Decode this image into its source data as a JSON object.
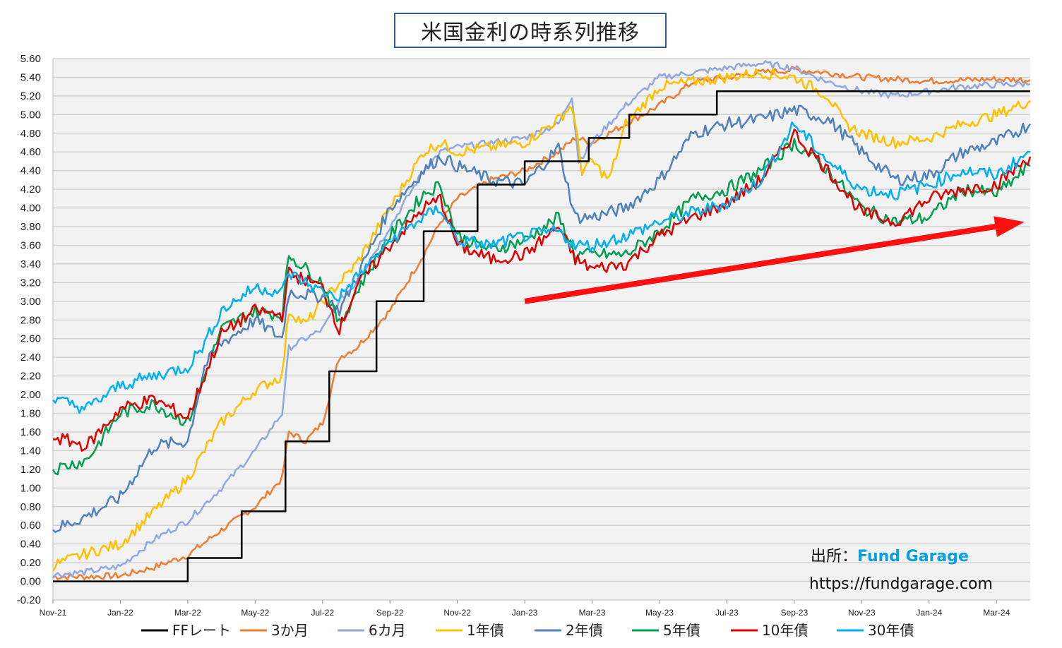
{
  "title": "米国金利の時系列推移",
  "source": {
    "label": "出所：",
    "brand": "Fund Garage",
    "url": "https://fundgarage.com"
  },
  "chart_data": {
    "type": "line",
    "title": "米国金利の時系列推移",
    "ylim": [
      -0.2,
      5.6
    ],
    "y_ticks": [
      "5.60",
      "5.40",
      "5.20",
      "5.00",
      "4.80",
      "4.60",
      "4.40",
      "4.20",
      "4.00",
      "3.80",
      "3.60",
      "3.40",
      "3.20",
      "3.00",
      "2.80",
      "2.60",
      "2.40",
      "2.20",
      "2.00",
      "1.80",
      "1.60",
      "1.40",
      "1.20",
      "1.00",
      "0.80",
      "0.60",
      "0.40",
      "0.20",
      "0.00",
      "-0.20"
    ],
    "x_ticks": [
      "Nov-21",
      "Jan-22",
      "Mar-22",
      "May-22",
      "Jul-22",
      "Sep-22",
      "Nov-22",
      "Jan-23",
      "Mar-23",
      "May-23",
      "Jul-23",
      "Sep-23",
      "Nov-23",
      "Jan-24",
      "Mar-24"
    ],
    "x_range": [
      "2021-11",
      "2024-04"
    ],
    "grid": true,
    "legend_position": "bottom",
    "annotation": {
      "type": "arrow",
      "color": "#ff1010",
      "from": [
        "2023-01",
        3.0
      ],
      "to": [
        "2024-04",
        3.85
      ]
    },
    "series": [
      {
        "name": "FFレート",
        "color": "#000000",
        "step": true,
        "points": [
          [
            0,
            0.0
          ],
          [
            4.0,
            0.0
          ],
          [
            4.0,
            0.25
          ],
          [
            5.6,
            0.25
          ],
          [
            5.6,
            0.75
          ],
          [
            6.9,
            0.75
          ],
          [
            6.9,
            1.5
          ],
          [
            8.2,
            1.5
          ],
          [
            8.2,
            2.25
          ],
          [
            9.6,
            2.25
          ],
          [
            9.6,
            3.0
          ],
          [
            11.0,
            3.0
          ],
          [
            11.0,
            3.75
          ],
          [
            12.6,
            3.75
          ],
          [
            12.6,
            4.25
          ],
          [
            14.0,
            4.25
          ],
          [
            14.0,
            4.5
          ],
          [
            15.9,
            4.5
          ],
          [
            15.9,
            4.75
          ],
          [
            17.1,
            4.75
          ],
          [
            17.1,
            5.0
          ],
          [
            19.7,
            5.0
          ],
          [
            19.7,
            5.25
          ],
          [
            29.0,
            5.25
          ]
        ]
      },
      {
        "name": "3か月",
        "color": "#ed7d31",
        "points": [
          [
            0,
            0.05
          ],
          [
            1,
            0.05
          ],
          [
            2,
            0.06
          ],
          [
            3,
            0.15
          ],
          [
            4,
            0.28
          ],
          [
            5,
            0.55
          ],
          [
            6,
            0.8
          ],
          [
            6.8,
            1.1
          ],
          [
            7,
            1.6
          ],
          [
            7.5,
            1.5
          ],
          [
            8,
            1.7
          ],
          [
            8.5,
            2.4
          ],
          [
            9,
            2.5
          ],
          [
            10,
            2.9
          ],
          [
            11,
            3.5
          ],
          [
            11.5,
            3.85
          ],
          [
            12,
            4.1
          ],
          [
            13,
            4.3
          ],
          [
            14,
            4.4
          ],
          [
            15,
            4.6
          ],
          [
            15.5,
            4.75
          ],
          [
            16,
            4.7
          ],
          [
            17,
            4.9
          ],
          [
            18,
            5.1
          ],
          [
            19,
            5.35
          ],
          [
            20,
            5.4
          ],
          [
            21,
            5.45
          ],
          [
            22,
            5.48
          ],
          [
            23,
            5.45
          ],
          [
            24,
            5.4
          ],
          [
            25,
            5.38
          ],
          [
            26,
            5.36
          ],
          [
            27,
            5.37
          ],
          [
            28,
            5.38
          ],
          [
            29,
            5.37
          ]
        ]
      },
      {
        "name": "6カ月",
        "color": "#8fa9dc",
        "points": [
          [
            0,
            0.07
          ],
          [
            1,
            0.1
          ],
          [
            2,
            0.16
          ],
          [
            3,
            0.45
          ],
          [
            4,
            0.65
          ],
          [
            5,
            1.0
          ],
          [
            6,
            1.4
          ],
          [
            6.8,
            1.8
          ],
          [
            7,
            2.5
          ],
          [
            8,
            2.7
          ],
          [
            8.5,
            3.0
          ],
          [
            9,
            3.2
          ],
          [
            10,
            3.8
          ],
          [
            11,
            4.4
          ],
          [
            11.5,
            4.6
          ],
          [
            12,
            4.65
          ],
          [
            13,
            4.7
          ],
          [
            14,
            4.75
          ],
          [
            15,
            4.9
          ],
          [
            15.4,
            5.2
          ],
          [
            15.6,
            4.5
          ],
          [
            16,
            4.7
          ],
          [
            17,
            5.1
          ],
          [
            18,
            5.4
          ],
          [
            19,
            5.45
          ],
          [
            20,
            5.5
          ],
          [
            21,
            5.55
          ],
          [
            22,
            5.5
          ],
          [
            23,
            5.35
          ],
          [
            24,
            5.25
          ],
          [
            25,
            5.2
          ],
          [
            26,
            5.25
          ],
          [
            27,
            5.3
          ],
          [
            28,
            5.32
          ],
          [
            29,
            5.33
          ]
        ]
      },
      {
        "name": "1年債",
        "color": "#ffc000",
        "points": [
          [
            0,
            0.17
          ],
          [
            1,
            0.3
          ],
          [
            2,
            0.4
          ],
          [
            3,
            0.75
          ],
          [
            4,
            1.1
          ],
          [
            5,
            1.7
          ],
          [
            6,
            2.05
          ],
          [
            6.8,
            2.2
          ],
          [
            7,
            2.9
          ],
          [
            7.5,
            2.75
          ],
          [
            8,
            3.0
          ],
          [
            9,
            3.4
          ],
          [
            10,
            4.0
          ],
          [
            11,
            4.6
          ],
          [
            11.5,
            4.7
          ],
          [
            12,
            4.6
          ],
          [
            13,
            4.65
          ],
          [
            14,
            4.7
          ],
          [
            15,
            4.95
          ],
          [
            15.4,
            5.1
          ],
          [
            15.7,
            4.4
          ],
          [
            16,
            4.5
          ],
          [
            16.5,
            4.3
          ],
          [
            17,
            4.9
          ],
          [
            18,
            5.3
          ],
          [
            19,
            5.35
          ],
          [
            20,
            5.4
          ],
          [
            21,
            5.45
          ],
          [
            22,
            5.4
          ],
          [
            23,
            5.2
          ],
          [
            23.5,
            4.9
          ],
          [
            24,
            4.8
          ],
          [
            25,
            4.7
          ],
          [
            26,
            4.75
          ],
          [
            27,
            4.9
          ],
          [
            28,
            5.0
          ],
          [
            29,
            5.15
          ]
        ]
      },
      {
        "name": "2年債",
        "color": "#4f81bd",
        "points": [
          [
            0,
            0.55
          ],
          [
            1,
            0.7
          ],
          [
            2,
            0.9
          ],
          [
            3,
            1.45
          ],
          [
            4,
            1.5
          ],
          [
            4.5,
            2.3
          ],
          [
            5,
            2.55
          ],
          [
            6,
            2.8
          ],
          [
            6.8,
            2.6
          ],
          [
            7,
            3.1
          ],
          [
            8,
            3.05
          ],
          [
            8.5,
            2.9
          ],
          [
            9,
            3.25
          ],
          [
            10,
            4.0
          ],
          [
            11,
            4.4
          ],
          [
            11.5,
            4.55
          ],
          [
            12,
            4.45
          ],
          [
            13,
            4.3
          ],
          [
            14,
            4.25
          ],
          [
            15,
            4.65
          ],
          [
            15.5,
            3.9
          ],
          [
            16,
            3.9
          ],
          [
            17,
            4.0
          ],
          [
            18,
            4.3
          ],
          [
            19,
            4.8
          ],
          [
            20,
            4.9
          ],
          [
            21,
            4.95
          ],
          [
            22,
            5.05
          ],
          [
            23,
            4.95
          ],
          [
            24,
            4.6
          ],
          [
            25,
            4.3
          ],
          [
            26,
            4.35
          ],
          [
            27,
            4.6
          ],
          [
            28,
            4.7
          ],
          [
            29,
            4.9
          ]
        ]
      },
      {
        "name": "5年債",
        "color": "#00a050",
        "points": [
          [
            0,
            1.2
          ],
          [
            1,
            1.3
          ],
          [
            2,
            1.8
          ],
          [
            3,
            1.9
          ],
          [
            4,
            1.7
          ],
          [
            4.5,
            2.2
          ],
          [
            5,
            2.7
          ],
          [
            6,
            2.9
          ],
          [
            6.8,
            2.85
          ],
          [
            7,
            3.5
          ],
          [
            8,
            3.2
          ],
          [
            8.5,
            2.75
          ],
          [
            9,
            3.1
          ],
          [
            10,
            3.7
          ],
          [
            11,
            4.15
          ],
          [
            11.5,
            4.25
          ],
          [
            12,
            3.7
          ],
          [
            13,
            3.55
          ],
          [
            14,
            3.65
          ],
          [
            15,
            3.9
          ],
          [
            15.5,
            3.5
          ],
          [
            16,
            3.5
          ],
          [
            17,
            3.5
          ],
          [
            18,
            3.75
          ],
          [
            19,
            4.1
          ],
          [
            20,
            4.2
          ],
          [
            21,
            4.4
          ],
          [
            22,
            4.7
          ],
          [
            23,
            4.4
          ],
          [
            24,
            4.0
          ],
          [
            25,
            3.85
          ],
          [
            26,
            3.9
          ],
          [
            27,
            4.2
          ],
          [
            28,
            4.15
          ],
          [
            29,
            4.45
          ]
        ]
      },
      {
        "name": "10年債",
        "color": "#e00000",
        "points": [
          [
            0,
            1.55
          ],
          [
            1,
            1.45
          ],
          [
            2,
            1.85
          ],
          [
            3,
            1.95
          ],
          [
            4,
            1.75
          ],
          [
            4.5,
            2.2
          ],
          [
            5,
            2.65
          ],
          [
            6,
            2.9
          ],
          [
            6.8,
            2.85
          ],
          [
            7,
            3.3
          ],
          [
            8,
            3.15
          ],
          [
            8.5,
            2.7
          ],
          [
            9,
            3.15
          ],
          [
            10,
            3.6
          ],
          [
            11,
            4.0
          ],
          [
            11.5,
            4.1
          ],
          [
            12,
            3.6
          ],
          [
            13,
            3.45
          ],
          [
            14,
            3.5
          ],
          [
            15,
            3.8
          ],
          [
            15.5,
            3.45
          ],
          [
            16,
            3.35
          ],
          [
            17,
            3.4
          ],
          [
            18,
            3.7
          ],
          [
            19,
            3.9
          ],
          [
            20,
            4.05
          ],
          [
            21,
            4.3
          ],
          [
            22,
            4.8
          ],
          [
            23,
            4.4
          ],
          [
            24,
            3.95
          ],
          [
            25,
            3.85
          ],
          [
            26,
            4.1
          ],
          [
            27,
            4.2
          ],
          [
            28,
            4.25
          ],
          [
            29,
            4.55
          ]
        ]
      },
      {
        "name": "30年債",
        "color": "#00b0f0",
        "points": [
          [
            0,
            1.95
          ],
          [
            1,
            1.85
          ],
          [
            2,
            2.1
          ],
          [
            3,
            2.2
          ],
          [
            4,
            2.3
          ],
          [
            4.5,
            2.55
          ],
          [
            5,
            2.9
          ],
          [
            6,
            3.15
          ],
          [
            6.8,
            3.1
          ],
          [
            7,
            3.3
          ],
          [
            8,
            3.1
          ],
          [
            8.5,
            3.05
          ],
          [
            9,
            3.25
          ],
          [
            10,
            3.65
          ],
          [
            11,
            3.9
          ],
          [
            11.5,
            4.0
          ],
          [
            12,
            3.65
          ],
          [
            13,
            3.6
          ],
          [
            14,
            3.7
          ],
          [
            15,
            3.75
          ],
          [
            15.5,
            3.6
          ],
          [
            16,
            3.6
          ],
          [
            17,
            3.7
          ],
          [
            18,
            3.85
          ],
          [
            19,
            3.95
          ],
          [
            20,
            4.05
          ],
          [
            21,
            4.3
          ],
          [
            22,
            4.9
          ],
          [
            23,
            4.5
          ],
          [
            24,
            4.2
          ],
          [
            25,
            4.15
          ],
          [
            26,
            4.25
          ],
          [
            27,
            4.4
          ],
          [
            28,
            4.35
          ],
          [
            29,
            4.6
          ]
        ]
      }
    ]
  }
}
